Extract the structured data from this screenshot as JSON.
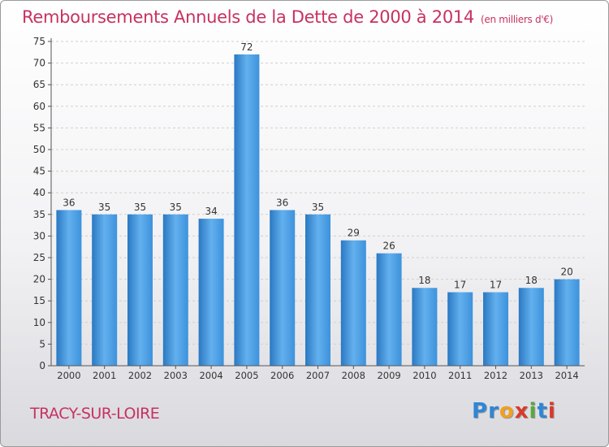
{
  "title": "Remboursements Annuels de la Dette de 2000 à 2014",
  "subtitle": "(en milliers d'€)",
  "city": "TRACY-SUR-LOIRE",
  "logo": {
    "letters": [
      "P",
      "r",
      "o",
      "x",
      "i",
      "t",
      "i"
    ],
    "colors": [
      "#2e86d6",
      "#2e86d6",
      "#f0a020",
      "#d83a2a",
      "#5aa63c",
      "#2e86d6",
      "#d83a2a"
    ]
  },
  "colors": {
    "bar": "#3d92dc",
    "bar_light": "#63b0ee",
    "bar_dark": "#2a78c2",
    "axis": "#555555",
    "grid": "#d0d0d0",
    "accent": "#c7325f"
  },
  "chart_data": {
    "type": "bar",
    "categories": [
      "2000",
      "2001",
      "2002",
      "2003",
      "2004",
      "2005",
      "2006",
      "2007",
      "2008",
      "2009",
      "2010",
      "2011",
      "2012",
      "2013",
      "2014"
    ],
    "values": [
      36,
      35,
      35,
      35,
      34,
      72,
      36,
      35,
      29,
      26,
      18,
      17,
      17,
      18,
      20
    ],
    "ylim": [
      0,
      75
    ],
    "yticks": [
      0,
      5,
      10,
      15,
      20,
      25,
      30,
      35,
      40,
      45,
      50,
      55,
      60,
      65,
      70,
      75
    ],
    "grid": true,
    "data_labels": true
  }
}
